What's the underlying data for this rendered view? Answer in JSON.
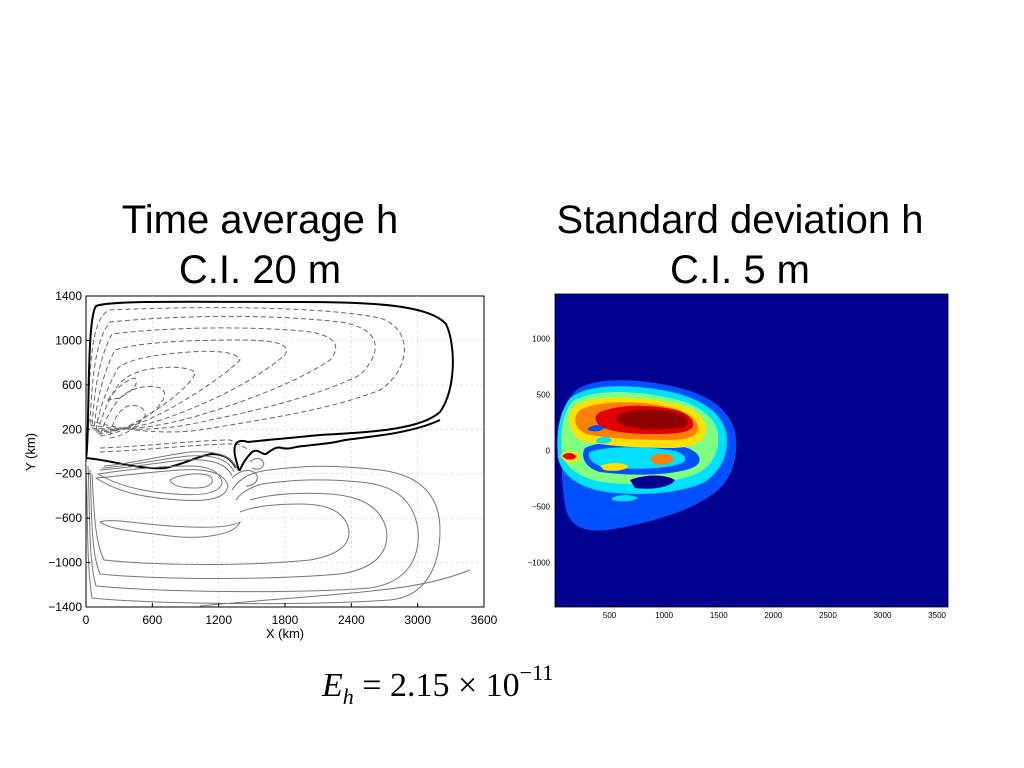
{
  "titles": {
    "left_line1": "Time average h",
    "left_line2": "C.I. 20 m",
    "right_line1": "Standard deviation h",
    "right_line2": "C.I. 5 m"
  },
  "equation": {
    "lhs_var": "E",
    "lhs_sub": "h",
    "equals": "=",
    "mantissa": "2.15",
    "times": "×",
    "base": "10",
    "exponent": "−11"
  },
  "chart_data": [
    {
      "type": "contour",
      "title": "Time average h",
      "subtitle": "C.I. 20 m",
      "xlabel": "X  (km)",
      "ylabel": "Y  (km)",
      "xlim": [
        0,
        3600
      ],
      "ylim": [
        -1400,
        1400
      ],
      "xticks": [
        "0",
        "600",
        "1200",
        "1800",
        "2400",
        "3000",
        "3600"
      ],
      "yticks": [
        "1400",
        "1000",
        "600",
        "200",
        "−200",
        "−600",
        "−1000",
        "−1400"
      ],
      "contour_interval_m": 20,
      "grid": true,
      "line_styles": {
        "positive": "solid",
        "negative": "dashed",
        "zero": "bold solid"
      }
    },
    {
      "type": "heatmap",
      "title": "Standard deviation h",
      "subtitle": "C.I. 5 m",
      "xlim": [
        0,
        3600
      ],
      "ylim": [
        -1400,
        1400
      ],
      "xticks": [
        "500",
        "1000",
        "1500",
        "2000",
        "2500",
        "3000",
        "3500"
      ],
      "yticks": [
        "1000",
        "500",
        "0",
        "−500",
        "−1000"
      ],
      "contour_interval_m": 5,
      "colormap": "jet",
      "colors": {
        "background": "#00008F",
        "blue": "#0050FF",
        "cyan": "#00E0FF",
        "green": "#80FF80",
        "yellow": "#FFE000",
        "orange": "#FF8000",
        "red": "#E00000",
        "darkred": "#8F0000"
      }
    }
  ]
}
